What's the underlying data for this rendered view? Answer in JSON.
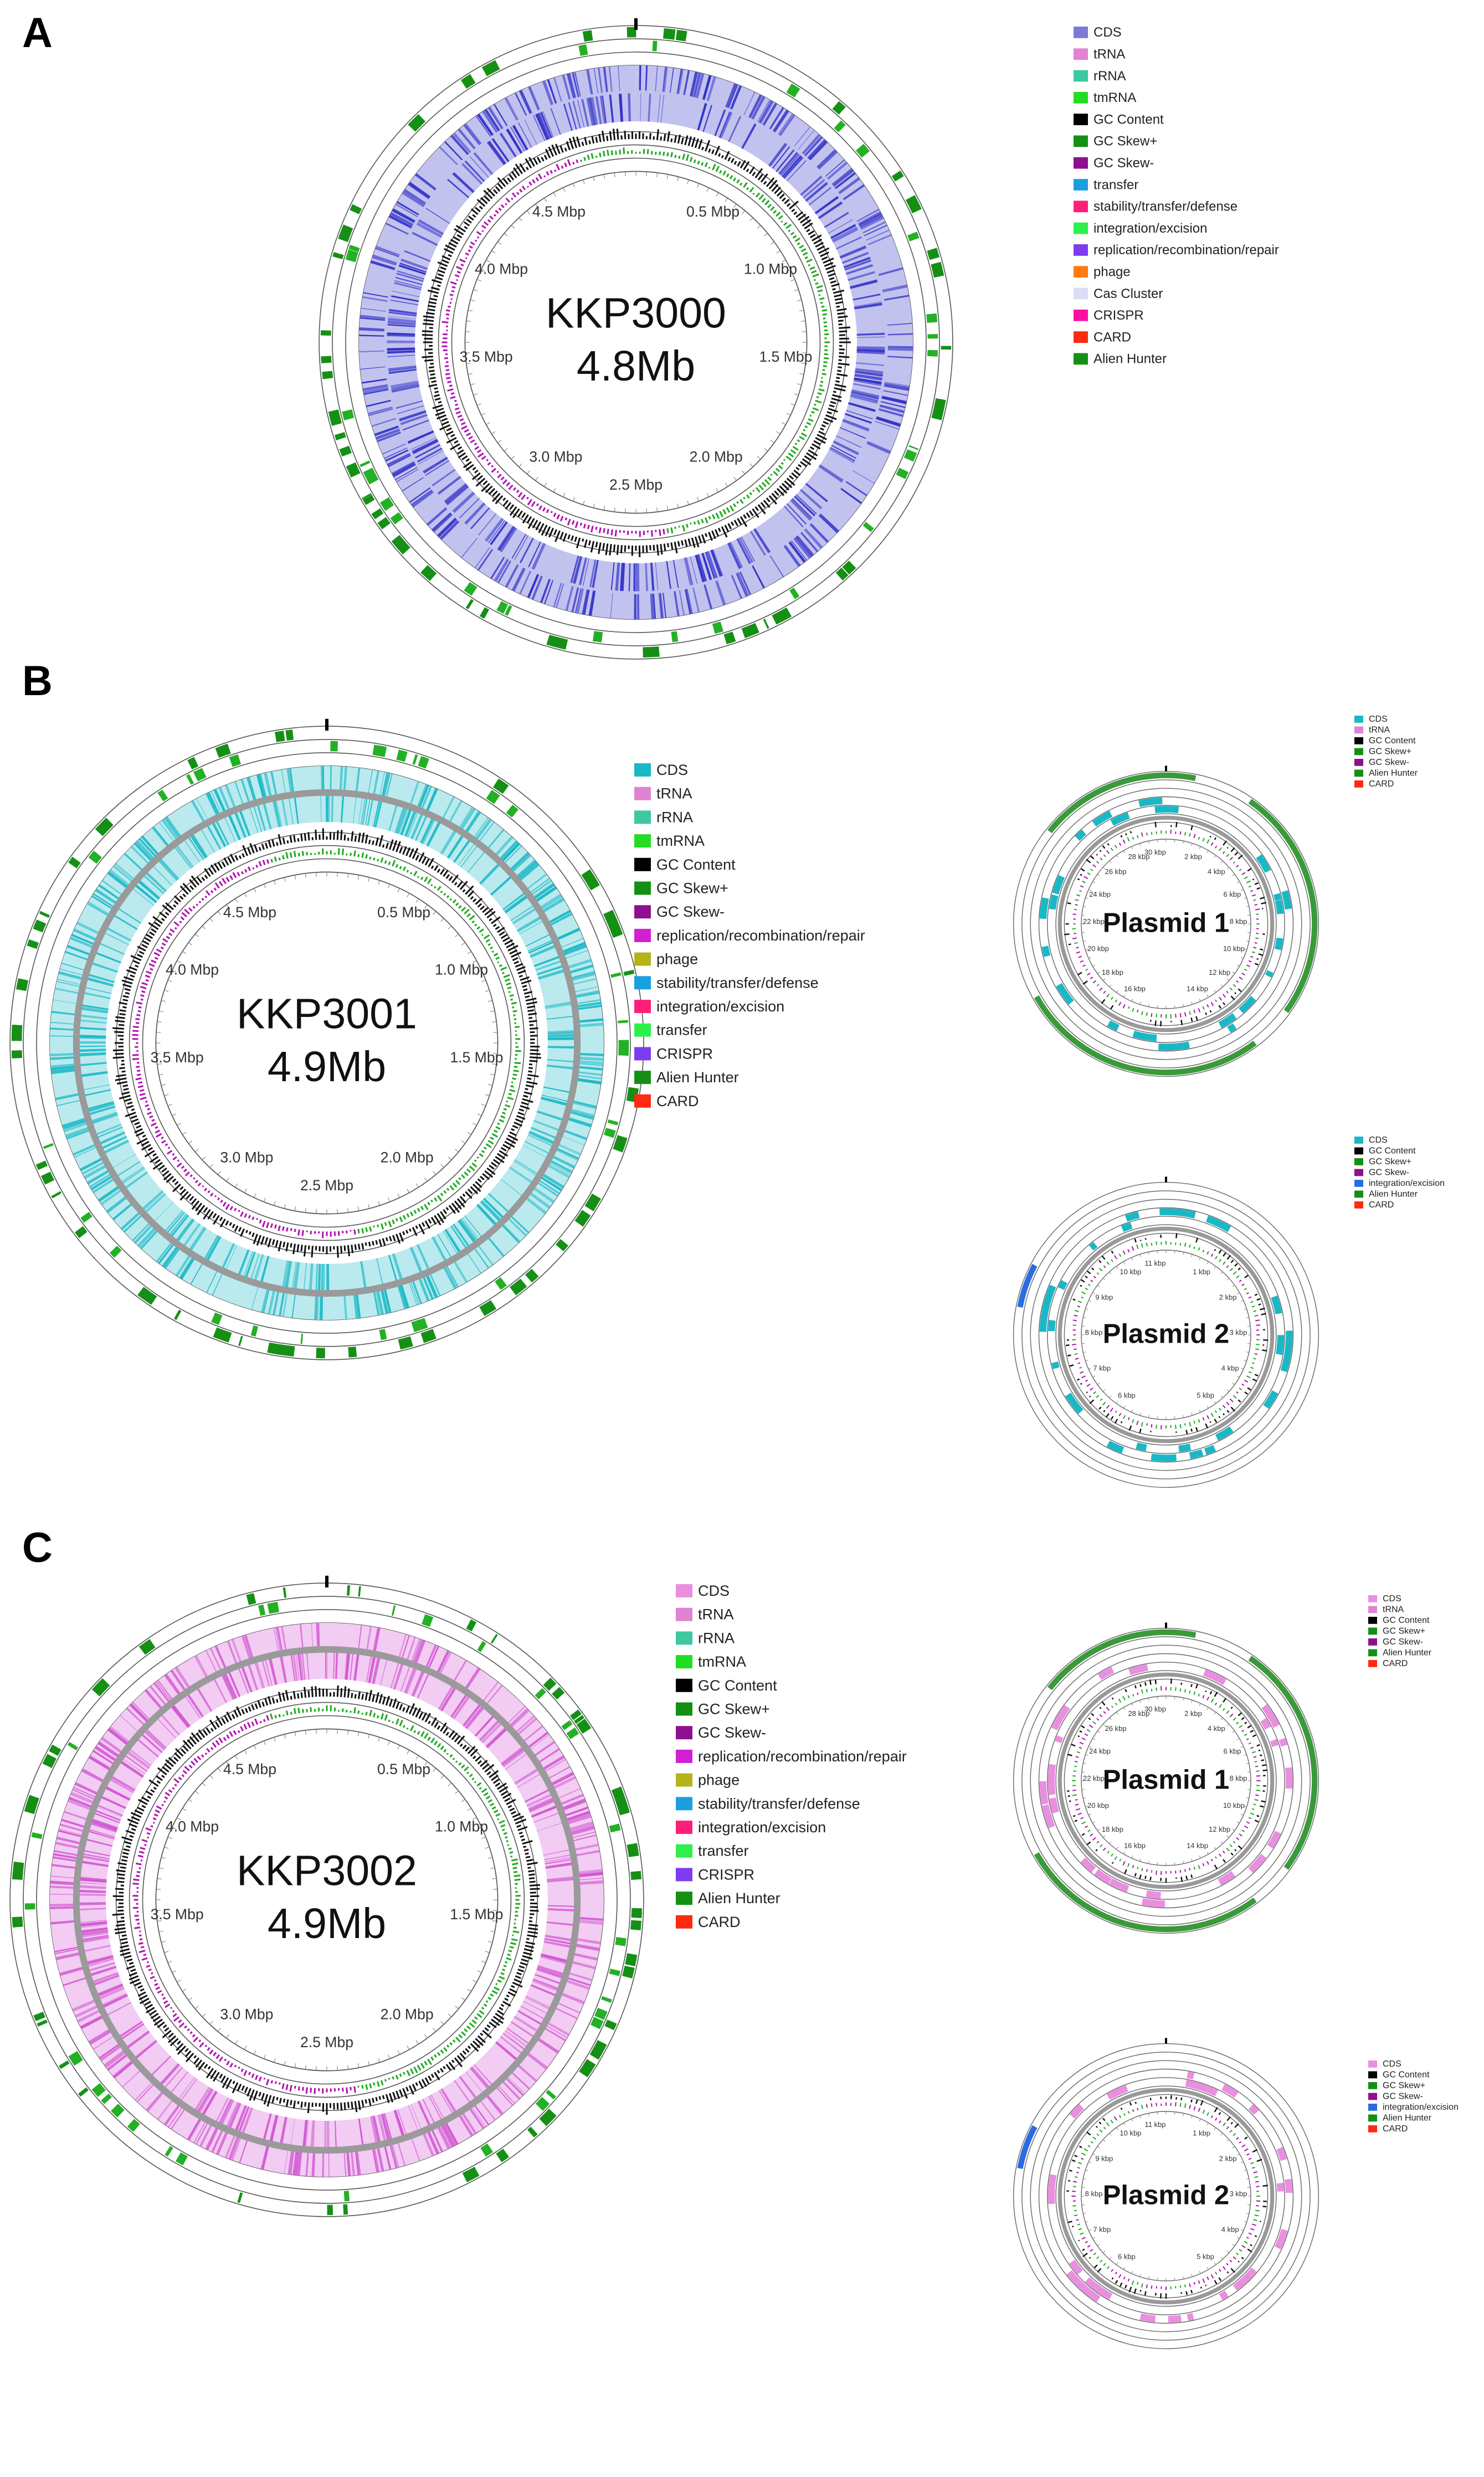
{
  "figure": {
    "panels": [
      {
        "id": "A",
        "label": "A",
        "genome": {
          "name": "KKP3000",
          "size": "4.8Mb",
          "ticks": [
            "4.5 Mbp",
            "0.5 Mbp",
            "4.0 Mbp",
            "1.0 Mbp",
            "3.5 Mbp",
            "1.5 Mbp",
            "3.0 Mbp",
            "2.0 Mbp",
            "2.5 Mbp"
          ],
          "cds_color": "#3232c8"
        },
        "legend": [
          {
            "label": "CDS",
            "color": "#7b7bd6"
          },
          {
            "label": "tRNA",
            "color": "#e083d2"
          },
          {
            "label": "rRNA",
            "color": "#3cc8a0"
          },
          {
            "label": "tmRNA",
            "color": "#22dd22"
          },
          {
            "label": "GC Content",
            "color": "#000000"
          },
          {
            "label": "GC Skew+",
            "color": "#139013"
          },
          {
            "label": "GC Skew-",
            "color": "#8e1090"
          },
          {
            "label": "transfer",
            "color": "#1aa0e0"
          },
          {
            "label": "stability/transfer/defense",
            "color": "#ff1f7a"
          },
          {
            "label": "integration/excision",
            "color": "#2ef04a"
          },
          {
            "label": "replication/recombination/repair",
            "color": "#7e3cf0"
          },
          {
            "label": "phage",
            "color": "#ff7a10"
          },
          {
            "label": "Cas Cluster",
            "color": "#dcdcf5"
          },
          {
            "label": "CRISPR",
            "color": "#ff10a0"
          },
          {
            "label": "CARD",
            "color": "#ff2a10"
          },
          {
            "label": "Alien Hunter",
            "color": "#159015"
          }
        ]
      },
      {
        "id": "B",
        "label": "B",
        "genome": {
          "name": "KKP3001",
          "size": "4.9Mb",
          "ticks": [
            "4.5 Mbp",
            "0.5 Mbp",
            "4.0 Mbp",
            "1.0 Mbp",
            "3.5 Mbp",
            "1.5 Mbp",
            "3.0 Mbp",
            "2.0 Mbp",
            "2.5 Mbp"
          ],
          "cds_color": "#1ab8c6"
        },
        "legend": [
          {
            "label": "CDS",
            "color": "#1ab8c6"
          },
          {
            "label": "tRNA",
            "color": "#e083d2"
          },
          {
            "label": "rRNA",
            "color": "#3cc8a0"
          },
          {
            "label": "tmRNA",
            "color": "#22dd22"
          },
          {
            "label": "GC Content",
            "color": "#000000"
          },
          {
            "label": "GC Skew+",
            "color": "#139013"
          },
          {
            "label": "GC Skew-",
            "color": "#8e1090"
          },
          {
            "label": "replication/recombination/repair",
            "color": "#d21fd2"
          },
          {
            "label": "phage",
            "color": "#b4b41a"
          },
          {
            "label": "stability/transfer/defense",
            "color": "#1aa0e0"
          },
          {
            "label": "integration/excision",
            "color": "#ff1f7a"
          },
          {
            "label": "transfer",
            "color": "#2ef04a"
          },
          {
            "label": "CRISPR",
            "color": "#7e3cf0"
          },
          {
            "label": "Alien Hunter",
            "color": "#159015"
          },
          {
            "label": "CARD",
            "color": "#ff2a10"
          }
        ],
        "plasmids": [
          {
            "name": "Plasmid 1",
            "cds_color": "#1ab8c6",
            "ticks": [
              "30 kbp",
              "2 kbp",
              "28 kbp",
              "4 kbp",
              "26 kbp",
              "6 kbp",
              "24 kbp",
              "8 kbp",
              "22 kbp",
              "10 kbp",
              "20 kbp",
              "12 kbp",
              "18 kbp",
              "14 kbp",
              "16 kbp"
            ],
            "legend": [
              {
                "label": "CDS",
                "color": "#1ab8c6"
              },
              {
                "label": "tRNA",
                "color": "#e083d2"
              },
              {
                "label": "GC Content",
                "color": "#000000"
              },
              {
                "label": "GC Skew+",
                "color": "#139013"
              },
              {
                "label": "GC Skew-",
                "color": "#8e1090"
              },
              {
                "label": "Alien Hunter",
                "color": "#159015"
              },
              {
                "label": "CARD",
                "color": "#ff2a10"
              }
            ]
          },
          {
            "name": "Plasmid 2",
            "cds_color": "#1ab8c6",
            "ticks": [
              "11 kbp",
              "1 kbp",
              "10 kbp",
              "2 kbp",
              "9 kbp",
              "3 kbp",
              "8 kbp",
              "4 kbp",
              "7 kbp",
              "5 kbp",
              "6 kbp"
            ],
            "legend": [
              {
                "label": "CDS",
                "color": "#1ab8c6"
              },
              {
                "label": "GC Content",
                "color": "#000000"
              },
              {
                "label": "GC Skew+",
                "color": "#139013"
              },
              {
                "label": "GC Skew-",
                "color": "#8e1090"
              },
              {
                "label": "integration/excision",
                "color": "#2a6be0"
              },
              {
                "label": "Alien Hunter",
                "color": "#159015"
              },
              {
                "label": "CARD",
                "color": "#ff2a10"
              }
            ]
          }
        ]
      },
      {
        "id": "C",
        "label": "C",
        "genome": {
          "name": "KKP3002",
          "size": "4.9Mb",
          "ticks": [
            "4.5 Mbp",
            "0.5 Mbp",
            "4.0 Mbp",
            "1.0 Mbp",
            "3.5 Mbp",
            "1.5 Mbp",
            "3.0 Mbp",
            "2.0 Mbp",
            "2.5 Mbp"
          ],
          "cds_color": "#d256d2"
        },
        "legend": [
          {
            "label": "CDS",
            "color": "#ea8ee0"
          },
          {
            "label": "tRNA",
            "color": "#e083d2"
          },
          {
            "label": "rRNA",
            "color": "#3cc8a0"
          },
          {
            "label": "tmRNA",
            "color": "#22dd22"
          },
          {
            "label": "GC Content",
            "color": "#000000"
          },
          {
            "label": "GC Skew+",
            "color": "#139013"
          },
          {
            "label": "GC Skew-",
            "color": "#8e1090"
          },
          {
            "label": "replication/recombination/repair",
            "color": "#d21fd2"
          },
          {
            "label": "phage",
            "color": "#b4b41a"
          },
          {
            "label": "stability/transfer/defense",
            "color": "#1aa0e0"
          },
          {
            "label": "integration/excision",
            "color": "#ff1f7a"
          },
          {
            "label": "transfer",
            "color": "#2ef04a"
          },
          {
            "label": "CRISPR",
            "color": "#7e3cf0"
          },
          {
            "label": "Alien Hunter",
            "color": "#159015"
          },
          {
            "label": "CARD",
            "color": "#ff2a10"
          }
        ],
        "plasmids": [
          {
            "name": "Plasmid 1",
            "cds_color": "#ea8ee0",
            "ticks": [
              "30 kbp",
              "2 kbp",
              "28 kbp",
              "4 kbp",
              "26 kbp",
              "6 kbp",
              "24 kbp",
              "8 kbp",
              "22 kbp",
              "10 kbp",
              "20 kbp",
              "12 kbp",
              "18 kbp",
              "14 kbp",
              "16 kbp"
            ],
            "legend": [
              {
                "label": "CDS",
                "color": "#ea8ee0"
              },
              {
                "label": "tRNA",
                "color": "#e083d2"
              },
              {
                "label": "GC Content",
                "color": "#000000"
              },
              {
                "label": "GC Skew+",
                "color": "#139013"
              },
              {
                "label": "GC Skew-",
                "color": "#8e1090"
              },
              {
                "label": "Alien Hunter",
                "color": "#159015"
              },
              {
                "label": "CARD",
                "color": "#ff2a10"
              }
            ]
          },
          {
            "name": "Plasmid 2",
            "cds_color": "#ea8ee0",
            "ticks": [
              "11 kbp",
              "1 kbp",
              "10 kbp",
              "2 kbp",
              "9 kbp",
              "3 kbp",
              "8 kbp",
              "4 kbp",
              "7 kbp",
              "5 kbp",
              "6 kbp"
            ],
            "legend": [
              {
                "label": "CDS",
                "color": "#ea8ee0"
              },
              {
                "label": "GC Content",
                "color": "#000000"
              },
              {
                "label": "GC Skew+",
                "color": "#139013"
              },
              {
                "label": "GC Skew-",
                "color": "#8e1090"
              },
              {
                "label": "integration/excision",
                "color": "#2a6be0"
              },
              {
                "label": "Alien Hunter",
                "color": "#159015"
              },
              {
                "label": "CARD",
                "color": "#ff2a10"
              }
            ]
          }
        ]
      }
    ]
  }
}
